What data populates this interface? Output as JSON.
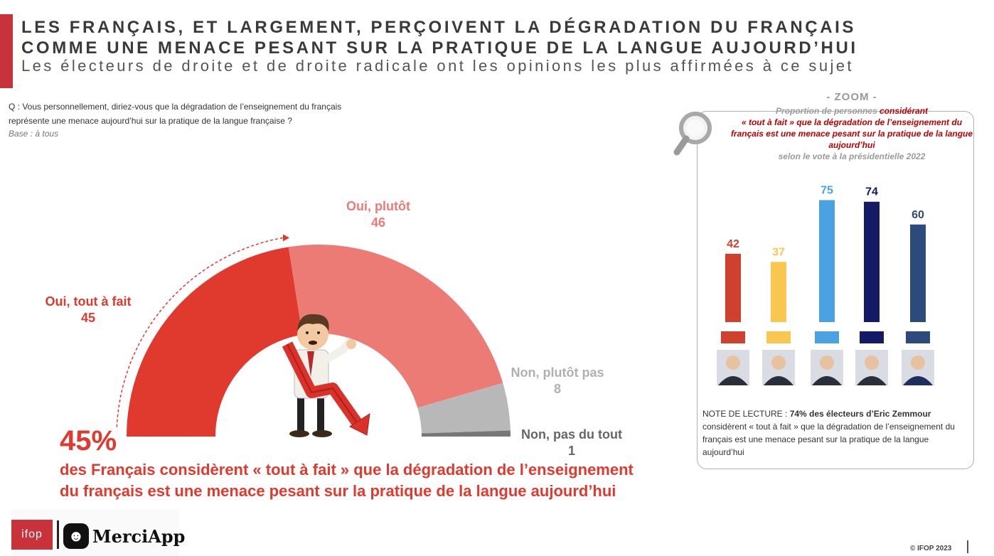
{
  "header": {
    "title_line1": "LES FRANÇAIS, ET LARGEMENT, PERÇOIVENT LA DÉGRADATION DU FRANÇAIS",
    "title_line2": "COMME UNE MENACE PESANT SUR LA PRATIQUE DE LA LANGUE AUJOURD’HUI",
    "subtitle": "Les électeurs de droite et de droite radicale ont les opinions les plus affirmées à ce sujet"
  },
  "question": {
    "line1": "Q : Vous personnellement, diriez-vous que la dégradation de l’enseignement du français",
    "line2": "représente une menace aujourd’hui sur la pratique de la langue française ?",
    "base": "Base : à tous"
  },
  "highlight": {
    "value": "45%",
    "caption_line1": "des Français considèrent « tout à fait » que la dégradation de l’enseignement",
    "caption_line2": "du français est une menace pesant sur la pratique de la langue aujourd’hui"
  },
  "chart_data": [
    {
      "type": "pie",
      "categories": [
        "Oui, tout à fait",
        "Oui, plutôt",
        "Non, plutôt pas",
        "Non, pas du tout"
      ],
      "values": [
        45,
        46,
        8,
        1
      ],
      "colors": [
        "#e03a2e",
        "#ec7b76",
        "#b8b8b8",
        "#777777"
      ],
      "label_colors": [
        "#e03a2e",
        "#ec7b76",
        "#b0b0b0",
        "#666666"
      ]
    },
    {
      "type": "bar",
      "title": "- ZOOM -",
      "categories": [
        "",
        "",
        "",
        "",
        ""
      ],
      "values": [
        42,
        37,
        75,
        74,
        60
      ],
      "colors": [
        "#d0402e",
        "#f9c74f",
        "#4aa3e0",
        "#141a66",
        "#2c4a7c"
      ],
      "ylim": [
        0,
        80
      ]
    }
  ],
  "zoom": {
    "desc_pre": "Proportion de personnes ",
    "desc_hl1": "considérant",
    "desc_hl2": "« tout à fait » que la dégradation de l’enseignement du français est une menace pesant sur la pratique de la langue aujourd’hui",
    "desc_post": "selon le vote à la présidentielle 2022"
  },
  "note": {
    "prefix": "NOTE DE LECTURE : ",
    "bold": "74% des électeurs d’Eric Zemmour",
    "rest": " considèrent « tout à fait » que la dégradation de l’enseignement du français est une menace pesant sur la pratique de la langue aujourd’hui"
  },
  "logos": {
    "ifop": "ifop",
    "merci_icon": "☻",
    "merci": "MerciApp"
  },
  "copyright": "© IFOP 2023"
}
